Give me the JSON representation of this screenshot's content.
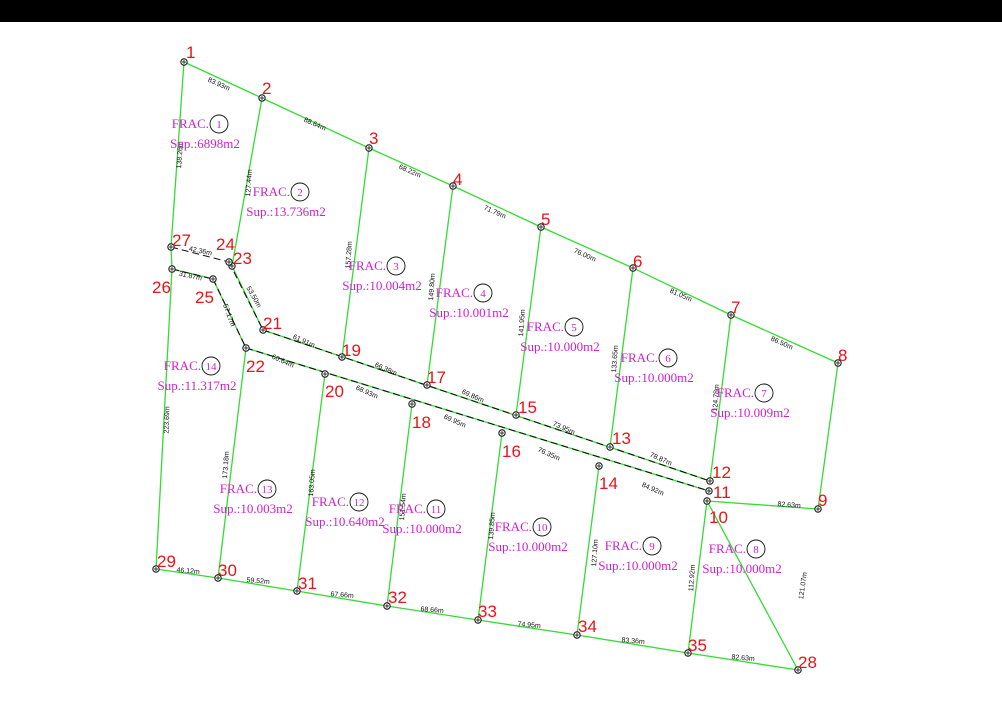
{
  "colors": {
    "boundary": "#33dd33",
    "street": "#111111",
    "vertex_label": "#e8141a",
    "lot_text": "#d01fd0"
  },
  "lot_prefix": "FRAC.",
  "lots": [
    {
      "id": "1",
      "area": "Sup.:6898m2"
    },
    {
      "id": "2",
      "area": "Sup.:13.736m2"
    },
    {
      "id": "3",
      "area": "Sup.:10.004m2"
    },
    {
      "id": "4",
      "area": "Sup.:10.001m2"
    },
    {
      "id": "5",
      "area": "Sup.:10.000m2"
    },
    {
      "id": "6",
      "area": "Sup.:10.000m2"
    },
    {
      "id": "7",
      "area": "Sup.:10.009m2"
    },
    {
      "id": "8",
      "area": "Sup.:10.000m2"
    },
    {
      "id": "9",
      "area": "Sup.:10.000m2"
    },
    {
      "id": "10",
      "area": "Sup.:10.000m2"
    },
    {
      "id": "11",
      "area": "Sup.:10.000m2"
    },
    {
      "id": "12",
      "area": "Sup.:10.640m2"
    },
    {
      "id": "13",
      "area": "Sup.:10.003m2"
    },
    {
      "id": "14",
      "area": "Sup.:11.317m2"
    }
  ],
  "vertices": [
    "1",
    "2",
    "3",
    "4",
    "5",
    "6",
    "7",
    "8",
    "9",
    "10",
    "11",
    "12",
    "13",
    "14",
    "15",
    "16",
    "17",
    "18",
    "19",
    "20",
    "21",
    "22",
    "23",
    "24",
    "25",
    "26",
    "27",
    "28",
    "29",
    "30",
    "31",
    "32",
    "33",
    "34",
    "35"
  ],
  "dimensions": [
    "83.93m",
    "88.64m",
    "68.22m",
    "71.79m",
    "76.00m",
    "81.05m",
    "86.50m",
    "82.63m",
    "121.07m",
    "82.63m",
    "83.36m",
    "74.95m",
    "68.66m",
    "67.66m",
    "59.52m",
    "46.12m",
    "223.69m",
    "138.26m",
    "127.44m",
    "157.28m",
    "149.80m",
    "141.95m",
    "133.65m",
    "124.78m",
    "112.92m",
    "127.10m",
    "139.85m",
    "151.54m",
    "163.05m",
    "173.18m",
    "42.36m",
    "31.87m",
    "53.50m",
    "57.17m",
    "61.91m",
    "66.38m",
    "69.86m",
    "73.95m",
    "78.87m",
    "60.64m",
    "68.93m",
    "69.95m",
    "76.35m",
    "84.92m"
  ]
}
